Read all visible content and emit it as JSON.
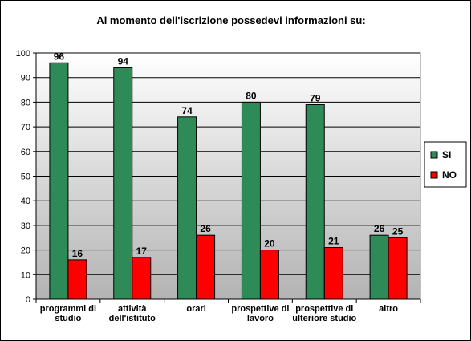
{
  "chart_data": {
    "type": "bar",
    "title": "Al momento dell'iscrizione possedevi  informazioni su:",
    "categories": [
      [
        "programmi di",
        "studio"
      ],
      [
        "attività",
        "dell'istituto"
      ],
      [
        "orari"
      ],
      [
        "prospettive di",
        "lavoro"
      ],
      [
        "prospettive  di",
        "ulteriore studio"
      ],
      [
        "altro"
      ]
    ],
    "series": [
      {
        "name": "SI",
        "color": "#2E8B57",
        "values": [
          96,
          94,
          74,
          80,
          79,
          26
        ]
      },
      {
        "name": "NO",
        "color": "#FF0000",
        "values": [
          16,
          17,
          26,
          20,
          21,
          25
        ]
      }
    ],
    "ylim": [
      0,
      100
    ],
    "yticks": [
      0,
      10,
      20,
      30,
      40,
      50,
      60,
      70,
      80,
      90,
      100
    ],
    "grid": true,
    "legend": "right",
    "plot_background": "gradient white-to-gray"
  }
}
